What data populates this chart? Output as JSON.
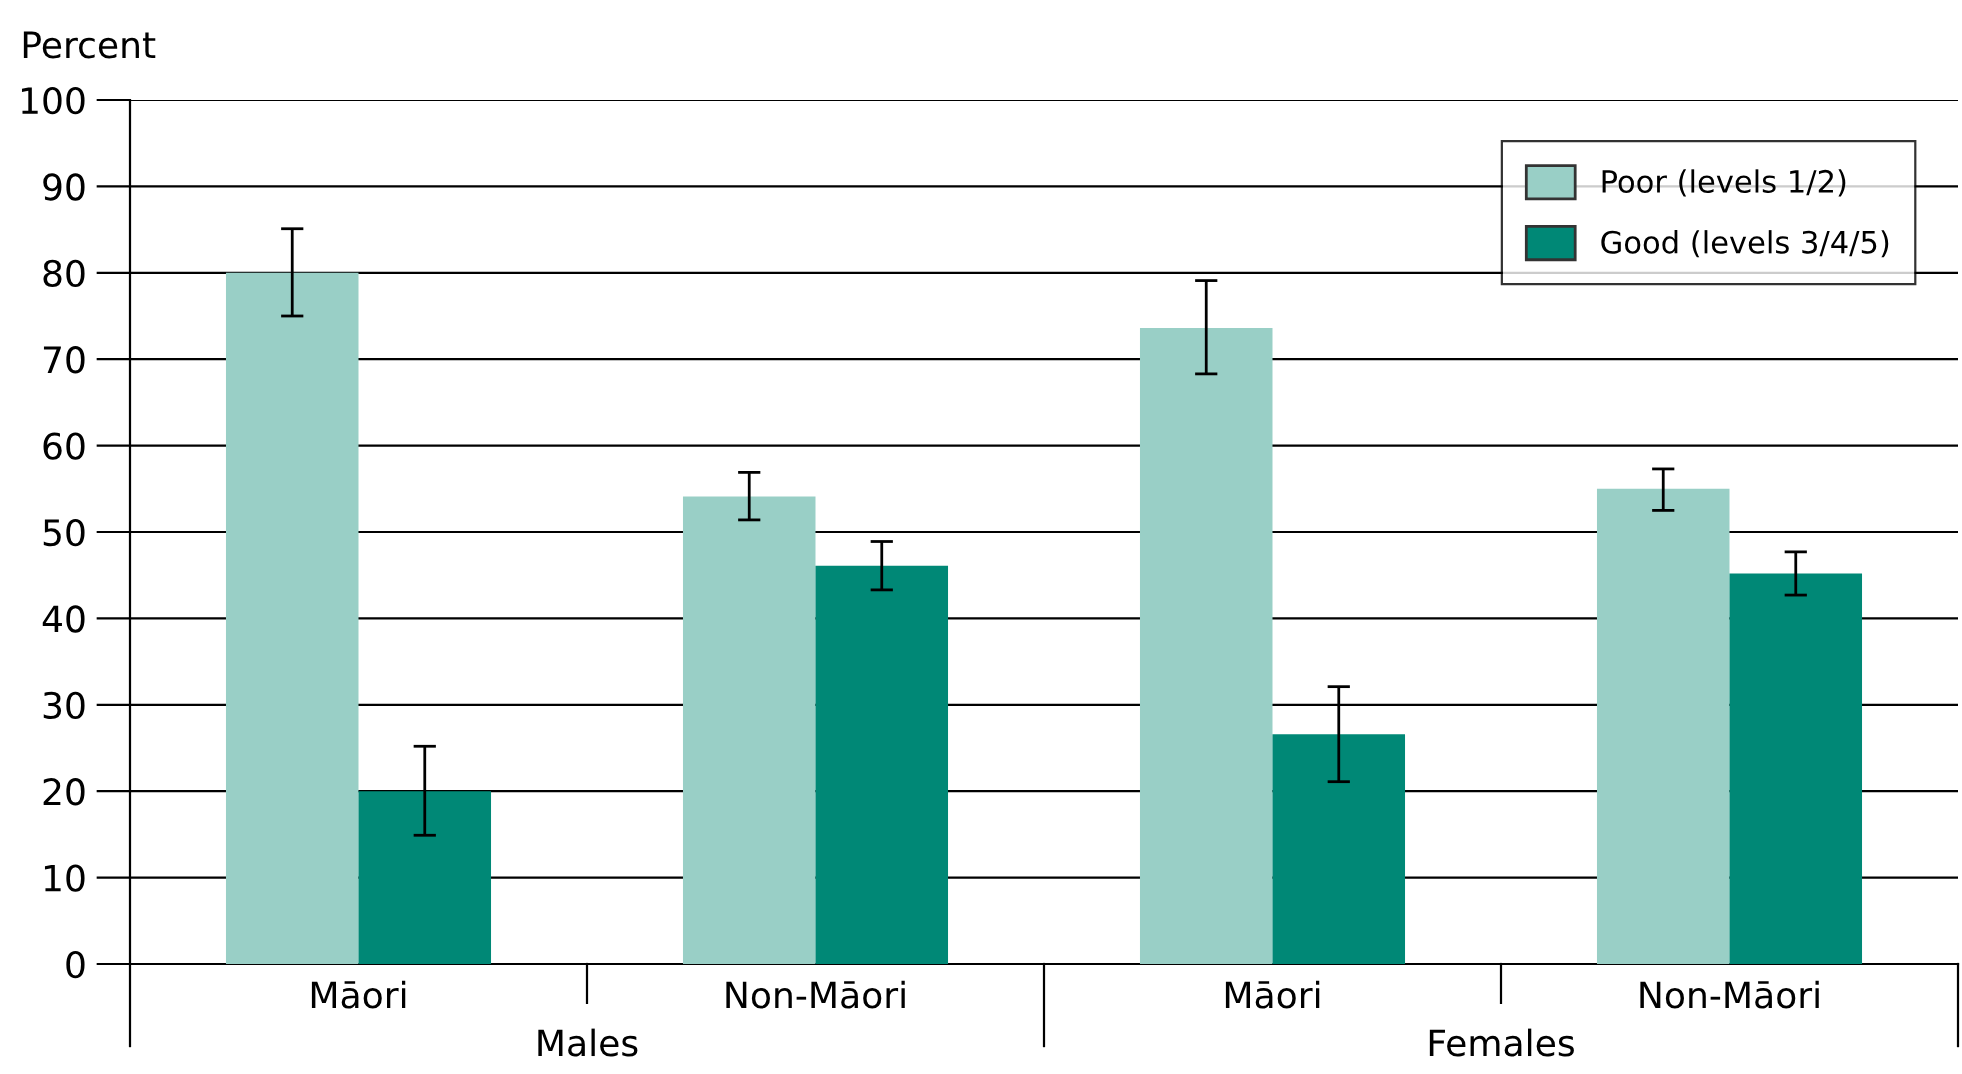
{
  "chart_data": {
    "type": "bar",
    "ylabel": "Percent",
    "categories": [
      "Māori",
      "Non-Māori",
      "Māori",
      "Non-Māori"
    ],
    "series": [
      {
        "name": "Poor (levels 1/2)",
        "color": "#99cfc6",
        "values": [
          80.0,
          54.1,
          73.6,
          55.0
        ],
        "errors": [
          [
            75.0,
            85.1
          ],
          [
            51.4,
            56.9
          ],
          [
            68.3,
            79.1
          ],
          [
            52.5,
            57.3
          ]
        ]
      },
      {
        "name": "Good (levels 3/4/5)",
        "color": "#008876",
        "values": [
          20.0,
          46.1,
          26.6,
          45.2
        ],
        "errors": [
          [
            14.9,
            25.2
          ],
          [
            43.3,
            48.9
          ],
          [
            21.1,
            32.1
          ],
          [
            42.7,
            47.7
          ]
        ]
      }
    ],
    "annotations": [
      "Males",
      "Females"
    ],
    "ylim": [
      0,
      100
    ],
    "yticks": [
      0,
      10,
      20,
      30,
      40,
      50,
      60,
      70,
      80,
      90,
      100
    ],
    "grid": "y",
    "legend": "top right"
  }
}
